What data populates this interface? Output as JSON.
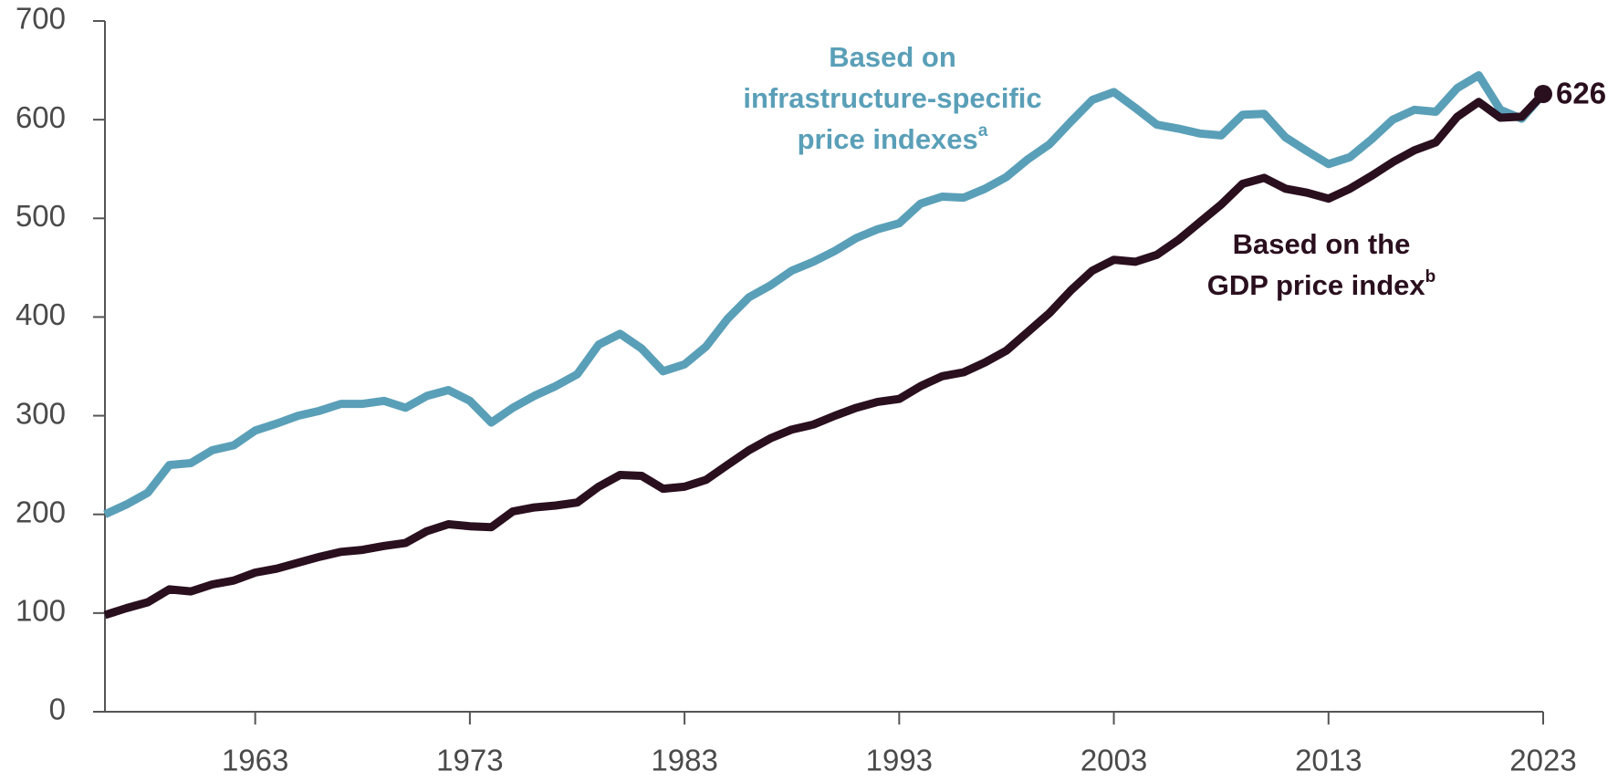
{
  "chart_data": {
    "type": "line",
    "x": [
      1956,
      1957,
      1958,
      1959,
      1960,
      1961,
      1962,
      1963,
      1964,
      1965,
      1966,
      1967,
      1968,
      1969,
      1970,
      1971,
      1972,
      1973,
      1974,
      1975,
      1976,
      1977,
      1978,
      1979,
      1980,
      1981,
      1982,
      1983,
      1984,
      1985,
      1986,
      1987,
      1988,
      1989,
      1990,
      1991,
      1992,
      1993,
      1994,
      1995,
      1996,
      1997,
      1998,
      1999,
      2000,
      2001,
      2002,
      2003,
      2004,
      2005,
      2006,
      2007,
      2008,
      2009,
      2010,
      2011,
      2012,
      2013,
      2014,
      2015,
      2016,
      2017,
      2018,
      2019,
      2020,
      2021,
      2022,
      2023
    ],
    "xlim": [
      1956,
      2023
    ],
    "xticks": [
      1963,
      1973,
      1983,
      1993,
      2003,
      2013,
      2023
    ],
    "ylim": [
      0,
      700
    ],
    "yticks": [
      0,
      100,
      200,
      300,
      400,
      500,
      600,
      700
    ],
    "grid": false,
    "series": [
      {
        "label_lines": [
          "Based on",
          "infrastructure-specific",
          "price indexes"
        ],
        "superscript": "a",
        "color": "#5a9fb8",
        "values": [
          200,
          210,
          222,
          250,
          252,
          265,
          270,
          285,
          292,
          300,
          305,
          312,
          312,
          315,
          308,
          320,
          326,
          315,
          293,
          308,
          320,
          330,
          342,
          372,
          383,
          368,
          345,
          352,
          370,
          398,
          420,
          432,
          447,
          456,
          467,
          480,
          489,
          495,
          515,
          522,
          521,
          530,
          542,
          560,
          575,
          598,
          620,
          628,
          612,
          595,
          591,
          586,
          584,
          605,
          606,
          582,
          568,
          555,
          562,
          580,
          600,
          610,
          608,
          632,
          645,
          610,
          601,
          626
        ]
      },
      {
        "label_lines": [
          "Based on the",
          "GDP price index"
        ],
        "superscript": "b",
        "color": "#2a0f1e",
        "values": [
          98,
          105,
          111,
          124,
          122,
          129,
          133,
          141,
          145,
          151,
          157,
          162,
          164,
          168,
          171,
          183,
          190,
          188,
          187,
          203,
          207,
          209,
          212,
          228,
          240,
          239,
          226,
          228,
          235,
          250,
          265,
          277,
          286,
          291,
          300,
          308,
          314,
          317,
          330,
          340,
          344,
          354,
          366,
          385,
          404,
          427,
          447,
          458,
          456,
          463,
          478,
          496,
          514,
          535,
          541,
          530,
          526,
          520,
          530,
          543,
          557,
          569,
          577,
          603,
          618,
          602,
          603,
          626
        ]
      }
    ]
  }
}
